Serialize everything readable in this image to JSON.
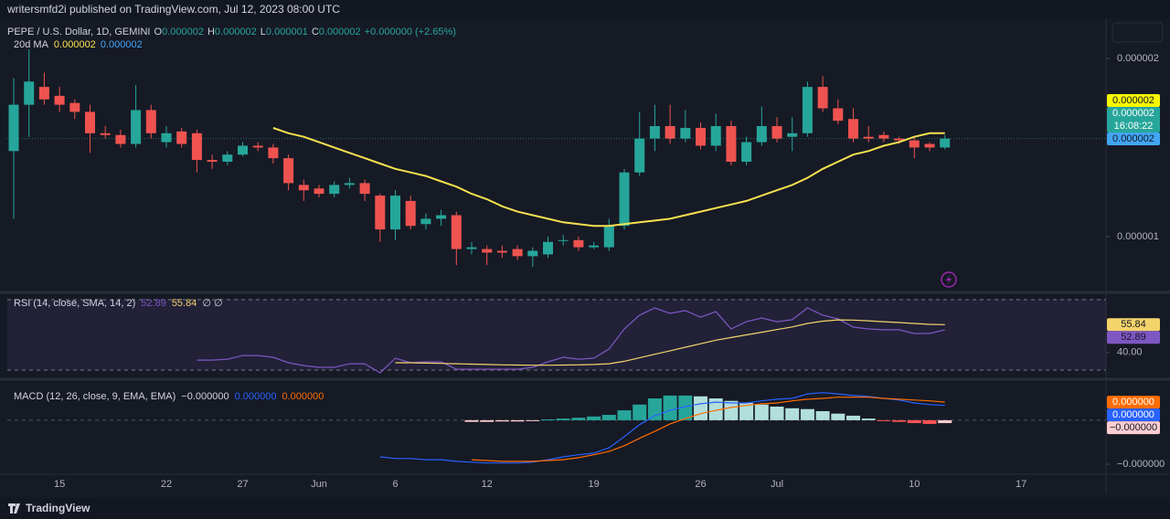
{
  "header": {
    "publisher": "writersmfd2i published on TradingView.com, Jul 12, 2023 08:00 UTC"
  },
  "footer": {
    "brand": "TradingView"
  },
  "chart_data": [
    {
      "type": "candlestick",
      "title": "PEPE / U.S. Dollar, 1D, GEMINI",
      "ohlc_legend": [
        {
          "key": "O",
          "value": "0.000002"
        },
        {
          "key": "H",
          "value": "0.000002"
        },
        {
          "key": "L",
          "value": "0.000001"
        },
        {
          "key": "C",
          "value": "0.000002"
        }
      ],
      "change": "+0.000000 (+2.65%)",
      "up_color": "#26a69a",
      "down_color": "#ef5350",
      "categories": [
        null,
        null,
        null,
        "15",
        null,
        null,
        null,
        null,
        null,
        null,
        "22",
        null,
        null,
        null,
        null,
        "27",
        null,
        null,
        null,
        null,
        "Jun",
        null,
        null,
        null,
        null,
        "6",
        null,
        null,
        null,
        null,
        null,
        "12",
        null,
        null,
        null,
        null,
        null,
        null,
        "19",
        null,
        null,
        null,
        null,
        null,
        null,
        "26",
        null,
        null,
        null,
        null,
        "Jul",
        null,
        null,
        null,
        null,
        null,
        null,
        null,
        null,
        "10",
        null,
        null,
        null,
        null,
        null,
        null,
        "17",
        null,
        null,
        null,
        null,
        null
      ],
      "open": [
        1.48e-06,
        1.74e-06,
        1.84e-06,
        1.79e-06,
        1.75e-06,
        1.7e-06,
        1.58e-06,
        1.57e-06,
        1.52e-06,
        1.71e-06,
        1.53e-06,
        1.59e-06,
        1.58e-06,
        1.43e-06,
        1.42e-06,
        1.46e-06,
        1.51e-06,
        1.5e-06,
        1.44e-06,
        1.29e-06,
        1.27e-06,
        1.24e-06,
        1.29e-06,
        1.3e-06,
        1.23e-06,
        1.04e-06,
        1.2e-06,
        1.07e-06,
        1.1e-06,
        1.12e-06,
        9.3e-07,
        9.3e-07,
        9.2e-07,
        9.3e-07,
        8.9e-07,
        9e-07,
        9.8e-07,
        9.8e-07,
        9.4e-07,
        9.4e-07,
        1.06e-06,
        1.36e-06,
        1.55e-06,
        1.62e-06,
        1.55e-06,
        1.61e-06,
        1.51e-06,
        1.62e-06,
        1.42e-06,
        1.53e-06,
        1.62e-06,
        1.56e-06,
        1.58e-06,
        1.84e-06,
        1.72e-06,
        1.66e-06,
        1.56e-06,
        1.57e-06,
        1.55e-06,
        1.54e-06,
        1.52e-06,
        1.5e-06,
        null,
        null,
        null,
        null,
        null,
        null,
        null,
        null,
        null,
        null
      ],
      "high": [
        1.89e-06,
        2.05e-06,
        1.92e-06,
        1.84e-06,
        1.77e-06,
        1.74e-06,
        1.62e-06,
        1.6e-06,
        1.85e-06,
        1.74e-06,
        1.62e-06,
        1.61e-06,
        1.6e-06,
        1.46e-06,
        1.48e-06,
        1.53e-06,
        1.53e-06,
        1.52e-06,
        1.46e-06,
        1.32e-06,
        1.29e-06,
        1.31e-06,
        1.33e-06,
        1.32e-06,
        1.24e-06,
        1.26e-06,
        1.23e-06,
        1.13e-06,
        1.15e-06,
        1.14e-06,
        9.7e-07,
        9.5e-07,
        9.5e-07,
        9.5e-07,
        9.4e-07,
        1e-06,
        1.01e-06,
        1e-06,
        9.7e-07,
        1.1e-06,
        1.38e-06,
        1.7e-06,
        1.74e-06,
        1.74e-06,
        1.71e-06,
        1.64e-06,
        1.69e-06,
        1.65e-06,
        1.56e-06,
        1.73e-06,
        1.67e-06,
        1.67e-06,
        1.87e-06,
        1.9e-06,
        1.77e-06,
        1.72e-06,
        1.62e-06,
        1.59e-06,
        1.56e-06,
        1.56e-06,
        1.53e-06,
        1.57e-06,
        null,
        null,
        null,
        null,
        null,
        null,
        null,
        null,
        null,
        null
      ],
      "low": [
        1.1e-06,
        1.56e-06,
        1.74e-06,
        1.7e-06,
        1.66e-06,
        1.47e-06,
        1.55e-06,
        1.5e-06,
        1.5e-06,
        1.55e-06,
        1.5e-06,
        1.5e-06,
        1.36e-06,
        1.38e-06,
        1.4e-06,
        1.45e-06,
        1.48e-06,
        1.41e-06,
        1.26e-06,
        1.2e-06,
        1.22e-06,
        1.22e-06,
        1.27e-06,
        1.2e-06,
        9.7e-07,
        9.8e-07,
        1.04e-06,
        1.04e-06,
        1.06e-06,
        8.4e-07,
        9e-07,
        8.4e-07,
        8.8e-07,
        8.7e-07,
        8.3e-07,
        8.8e-07,
        9.5e-07,
        9.2e-07,
        9.3e-07,
        9.2e-07,
        1.04e-06,
        1.34e-06,
        1.48e-06,
        1.52e-06,
        1.53e-06,
        1.49e-06,
        1.48e-06,
        1.4e-06,
        1.4e-06,
        1.51e-06,
        1.53e-06,
        1.48e-06,
        1.56e-06,
        1.7e-06,
        1.63e-06,
        1.53e-06,
        1.53e-06,
        1.53e-06,
        1.52e-06,
        1.44e-06,
        1.48e-06,
        1.49e-06,
        null,
        null,
        null,
        null,
        null,
        null,
        null,
        null,
        null,
        null
      ],
      "close": [
        1.74e-06,
        1.87e-06,
        1.77e-06,
        1.74e-06,
        1.7e-06,
        1.58e-06,
        1.57e-06,
        1.52e-06,
        1.71e-06,
        1.58e-06,
        1.58e-06,
        1.52e-06,
        1.43e-06,
        1.42e-06,
        1.46e-06,
        1.51e-06,
        1.5e-06,
        1.44e-06,
        1.3e-06,
        1.26e-06,
        1.24e-06,
        1.29e-06,
        1.3e-06,
        1.24e-06,
        1.04e-06,
        1.23e-06,
        1.06e-06,
        1.1e-06,
        1.12e-06,
        9.3e-07,
        9.4e-07,
        9.1e-07,
        9.1e-07,
        8.9e-07,
        9.2e-07,
        9.7e-07,
        9.8e-07,
        9.4e-07,
        9.5e-07,
        1.06e-06,
        1.36e-06,
        1.55e-06,
        1.62e-06,
        1.55e-06,
        1.61e-06,
        1.51e-06,
        1.62e-06,
        1.42e-06,
        1.53e-06,
        1.62e-06,
        1.55e-06,
        1.58e-06,
        1.84e-06,
        1.72e-06,
        1.65e-06,
        1.55e-06,
        1.55e-06,
        1.55e-06,
        1.54e-06,
        1.5e-06,
        1.5e-06,
        1.55e-06,
        null,
        null,
        null,
        null,
        null,
        null,
        null,
        null,
        null,
        null
      ],
      "series": [
        {
          "name": "20d MA",
          "color": "#f7e14f",
          "legend_values": [
            {
              "text": "0.000002",
              "color": "#f7e14f"
            },
            {
              "text": "0.000002",
              "color": "#42a5f5"
            }
          ],
          "values": [
            null,
            null,
            null,
            null,
            null,
            null,
            null,
            null,
            null,
            null,
            null,
            null,
            null,
            null,
            null,
            null,
            null,
            1.61e-06,
            1.58e-06,
            1.56e-06,
            1.53e-06,
            1.5e-06,
            1.47e-06,
            1.44e-06,
            1.41e-06,
            1.38e-06,
            1.36e-06,
            1.34e-06,
            1.31e-06,
            1.28e-06,
            1.24e-06,
            1.21e-06,
            1.17e-06,
            1.14e-06,
            1.12e-06,
            1.1e-06,
            1.08e-06,
            1.07e-06,
            1.06e-06,
            1.06e-06,
            1.07e-06,
            1.08e-06,
            1.09e-06,
            1.1e-06,
            1.12e-06,
            1.14e-06,
            1.16e-06,
            1.18e-06,
            1.2e-06,
            1.23e-06,
            1.26e-06,
            1.29e-06,
            1.33e-06,
            1.38e-06,
            1.42e-06,
            1.46e-06,
            1.48e-06,
            1.51e-06,
            1.53e-06,
            1.56e-06,
            1.58e-06,
            1.58e-06,
            null,
            null,
            null,
            null,
            null,
            null,
            null,
            null,
            null,
            null
          ]
        }
      ],
      "price_tags": [
        {
          "text": "0.000002",
          "color": "#f7f700",
          "text_color": "#131722"
        },
        {
          "text": "0.000002",
          "color": "#26a69a",
          "text_color": "#ffffff",
          "sub": "16:08:22"
        },
        {
          "text": "0.000002",
          "color": "#42a5f5",
          "text_color": "#131722"
        }
      ],
      "ylim": [
        6.97e-07,
        2.215e-06
      ],
      "yticks": [
        1e-06,
        2e-06
      ],
      "grid": false
    },
    {
      "type": "line",
      "title": "RSI (14, close, SMA, 14, 2)",
      "flags": "∅  ∅",
      "bands": [
        30,
        70
      ],
      "band_color": "rgba(126,87,194,0.12)",
      "series": [
        {
          "color": "#7e57c2",
          "last_label": "52.89",
          "values": [
            null,
            null,
            null,
            null,
            null,
            null,
            null,
            null,
            null,
            null,
            null,
            null,
            35.7,
            35.7,
            36.2,
            38.3,
            38.3,
            37.3,
            34.2,
            32.6,
            31.6,
            31.6,
            33.6,
            33.6,
            28.4,
            36.8,
            34.2,
            34.7,
            34.7,
            30.5,
            30.5,
            30.5,
            30.5,
            30.5,
            31.6,
            34.7,
            37.3,
            36.2,
            36.8,
            42,
            53.4,
            61.2,
            65.3,
            62.2,
            63.8,
            60.1,
            63.2,
            53.4,
            57.5,
            59.6,
            57.5,
            58.6,
            65.3,
            61.2,
            59.1,
            54.4,
            53.4,
            52.9,
            52.9,
            50.8,
            50.8,
            52.89,
            null,
            null,
            null,
            null,
            null,
            null,
            null,
            null,
            null,
            null
          ]
        },
        {
          "color": "#f5d36b",
          "last_label": "55.84",
          "values": [
            null,
            null,
            null,
            null,
            null,
            null,
            null,
            null,
            null,
            null,
            null,
            null,
            null,
            null,
            null,
            null,
            null,
            null,
            null,
            null,
            null,
            null,
            null,
            null,
            null,
            34.2,
            34.2,
            34.0,
            33.8,
            33.6,
            33.4,
            33.2,
            33.0,
            32.9,
            32.8,
            32.8,
            32.9,
            33.0,
            33.2,
            33.6,
            35.0,
            37.0,
            39.0,
            41.0,
            43.0,
            45.0,
            47.0,
            48.5,
            50.0,
            51.5,
            53.0,
            54.5,
            56.5,
            57.8,
            58.5,
            58.4,
            58.0,
            57.5,
            57.0,
            56.5,
            56.0,
            55.84,
            null,
            null,
            null,
            null,
            null,
            null,
            null,
            null,
            null,
            null
          ]
        }
      ],
      "ylim": [
        26.4,
        73.1
      ],
      "yticks": [
        {
          "value": 40,
          "label": "40.00"
        }
      ]
    },
    {
      "type": "macd",
      "title": "MACD (12, 26, close, 9, EMA, EMA)",
      "histogram": {
        "last_label": "−0.000000",
        "legend_color": "#d1d4dc",
        "tag_color": "#ffcdd2",
        "colors": [
          "#26a69a",
          "#b2dfdb",
          "#ff5252",
          "#ffcdd2"
        ],
        "values": [
          null,
          null,
          null,
          null,
          null,
          null,
          null,
          null,
          null,
          null,
          null,
          null,
          null,
          null,
          null,
          null,
          null,
          null,
          null,
          null,
          null,
          null,
          null,
          null,
          null,
          null,
          null,
          null,
          null,
          null,
          -4e-09,
          -4e-09,
          -3e-09,
          -3e-09,
          -2e-09,
          2e-09,
          4e-09,
          6e-09,
          9e-09,
          1.3e-08,
          2.4e-08,
          3.8e-08,
          5.3e-08,
          6e-08,
          6e-08,
          5.8e-08,
          5.3e-08,
          4.7e-08,
          4.2e-08,
          3.8e-08,
          3.3e-08,
          2.9e-08,
          2.7e-08,
          2.2e-08,
          1.6e-08,
          1.1e-08,
          4e-09,
          -2e-09,
          -4e-09,
          -7e-09,
          -9e-09,
          -7e-09,
          null,
          null,
          null,
          null,
          null,
          null,
          null,
          null,
          null,
          null
        ]
      },
      "series": [
        {
          "color": "#2962ff",
          "last_label": "0.000000",
          "values": [
            null,
            null,
            null,
            null,
            null,
            null,
            null,
            null,
            null,
            null,
            null,
            null,
            null,
            null,
            null,
            null,
            null,
            null,
            null,
            null,
            null,
            null,
            null,
            null,
            -8.9e-08,
            -9.3e-08,
            -9.3e-08,
            -9.6e-08,
            -9.6e-08,
            -1e-07,
            -1.02e-07,
            -1.04e-07,
            -1.04e-07,
            -1.04e-07,
            -1.02e-07,
            -9.6e-08,
            -8.9e-08,
            -8.4e-08,
            -8e-08,
            -6.7e-08,
            -4e-08,
            -1.1e-08,
            1.1e-08,
            2.4e-08,
            3.3e-08,
            4e-08,
            4.4e-08,
            4.2e-08,
            4.2e-08,
            4.7e-08,
            5.1e-08,
            5.3e-08,
            6.4e-08,
            6.7e-08,
            6.4e-08,
            6e-08,
            5.8e-08,
            5.3e-08,
            4.9e-08,
            4.2e-08,
            3.8e-08,
            3.6e-08,
            null,
            null,
            null,
            null,
            null,
            null,
            null,
            null,
            null,
            null
          ]
        },
        {
          "color": "#ff6d00",
          "last_label": "0.000000",
          "values": [
            null,
            null,
            null,
            null,
            null,
            null,
            null,
            null,
            null,
            null,
            null,
            null,
            null,
            null,
            null,
            null,
            null,
            null,
            null,
            null,
            null,
            null,
            null,
            null,
            null,
            null,
            null,
            null,
            null,
            null,
            -9.6e-08,
            -9.8e-08,
            -1e-07,
            -1e-07,
            -1e-07,
            -9.8e-08,
            -9.6e-08,
            -9.1e-08,
            -8.4e-08,
            -7.6e-08,
            -6.2e-08,
            -4.4e-08,
            -2.7e-08,
            -9e-09,
            4e-09,
            1.6e-08,
            2.4e-08,
            3.1e-08,
            3.6e-08,
            4e-08,
            4.2e-08,
            4.7e-08,
            5.1e-08,
            5.3e-08,
            5.6e-08,
            5.6e-08,
            5.6e-08,
            5.3e-08,
            5.1e-08,
            4.9e-08,
            4.7e-08,
            4.4e-08,
            null,
            null,
            null,
            null,
            null,
            null,
            null,
            null,
            null,
            null
          ]
        }
      ],
      "zero_line": true,
      "ylim": [
        -1.29e-07,
        9.3e-08
      ],
      "yticks": [
        {
          "value": -1.07e-07,
          "label": "−0.000000"
        }
      ]
    }
  ]
}
